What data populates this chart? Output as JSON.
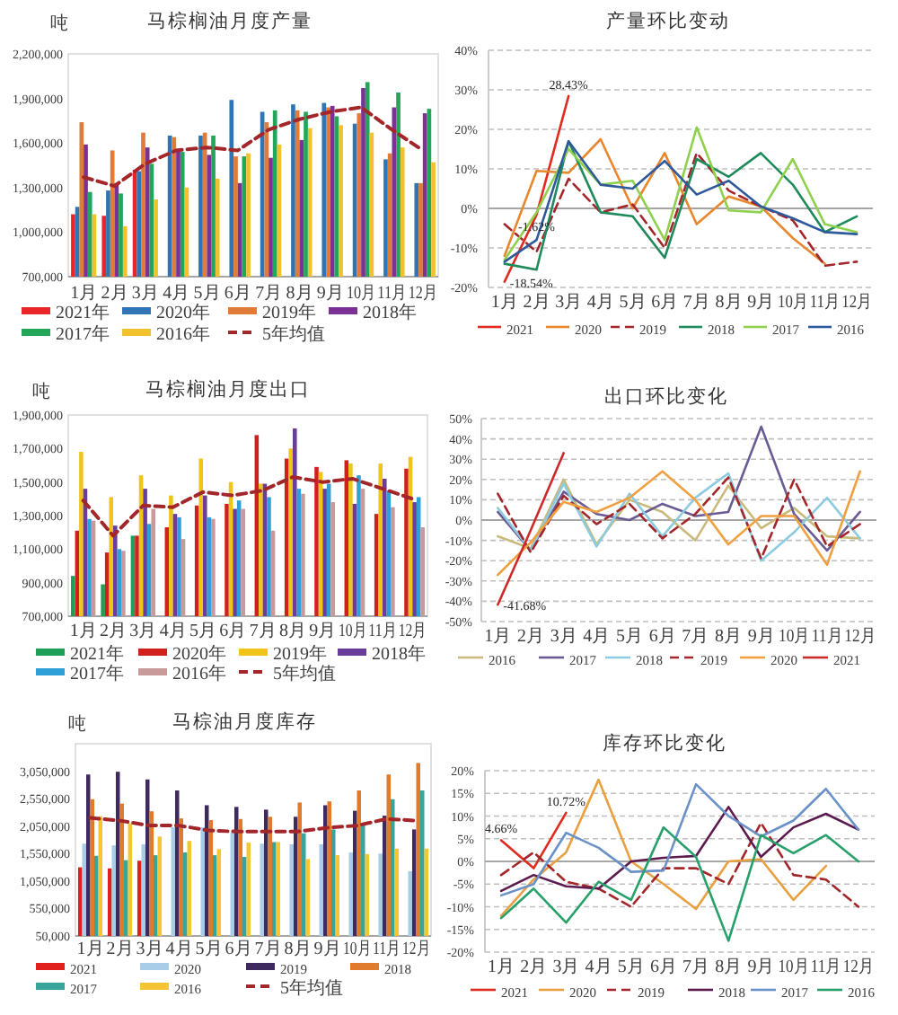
{
  "chart_data": [
    {
      "type": "bar",
      "title": "马棕榈油月度产量",
      "ylabel": "吨",
      "categories": [
        "1月",
        "2月",
        "3月",
        "4月",
        "5月",
        "6月",
        "7月",
        "8月",
        "9月",
        "10月",
        "11月",
        "12月"
      ],
      "series": [
        {
          "name": "2021年",
          "color": "#e8262a",
          "values": [
            1120000,
            1110000,
            1420000,
            null,
            null,
            null,
            null,
            null,
            null,
            null,
            null,
            null
          ]
        },
        {
          "name": "2020年",
          "color": "#2f75b5",
          "values": [
            1170000,
            1280000,
            1410000,
            1650000,
            1650000,
            1890000,
            1810000,
            1860000,
            1870000,
            1730000,
            1490000,
            1330000
          ]
        },
        {
          "name": "2019年",
          "color": "#e07b39",
          "values": [
            1740000,
            1550000,
            1670000,
            1640000,
            1670000,
            1510000,
            1740000,
            1820000,
            1840000,
            1800000,
            1530000,
            1330000
          ]
        },
        {
          "name": "2018年",
          "color": "#7b3294",
          "values": [
            1590000,
            1330000,
            1570000,
            1560000,
            1520000,
            1330000,
            1500000,
            1620000,
            1850000,
            1970000,
            1840000,
            1800000
          ]
        },
        {
          "name": "2017年",
          "color": "#23a55a",
          "values": [
            1270000,
            1260000,
            1460000,
            1540000,
            1650000,
            1510000,
            1820000,
            1810000,
            1780000,
            2010000,
            1940000,
            1830000
          ]
        },
        {
          "name": "2016年",
          "color": "#f2c12e",
          "values": [
            1120000,
            1040000,
            1220000,
            1300000,
            1360000,
            1530000,
            1590000,
            1700000,
            1720000,
            1670000,
            1570000,
            1470000
          ]
        },
        {
          "name": "5年均值",
          "type": "line",
          "line_style": "dashed",
          "color": "#a3262a",
          "values": [
            1370000,
            1310000,
            1460000,
            1550000,
            1570000,
            1550000,
            1690000,
            1760000,
            1810000,
            1840000,
            1690000,
            1550000
          ]
        }
      ],
      "ylim": [
        700000,
        2200000
      ],
      "yticks": [
        {
          "value": 700000,
          "label": "700,000"
        },
        {
          "value": 1000000,
          "label": "1,000,000"
        },
        {
          "value": 1300000,
          "label": "1,300,000"
        },
        {
          "value": 1600000,
          "label": "1,600,000"
        },
        {
          "value": 1900000,
          "label": "1,900,000"
        },
        {
          "value": 2200000,
          "label": "2,200,000"
        }
      ],
      "legend": "bottom"
    },
    {
      "type": "line",
      "title": "产量环比变动",
      "categories": [
        "1月",
        "2月",
        "3月",
        "4月",
        "5月",
        "6月",
        "7月",
        "8月",
        "9月",
        "10月",
        "11月",
        "12月"
      ],
      "series": [
        {
          "name": "2021",
          "color": "#e02b20",
          "values": [
            -18.54,
            -1.62,
            28.43,
            null,
            null,
            null,
            null,
            null,
            null,
            null,
            null,
            null
          ],
          "value_labels": [
            "-18.54%",
            "-1.62%",
            "28.43%",
            null,
            null,
            null,
            null,
            null,
            null,
            null,
            null,
            null
          ]
        },
        {
          "name": "2020",
          "color": "#e8872e",
          "values": [
            -12,
            9.5,
            9,
            17.5,
            0,
            14,
            -4,
            3,
            0.5,
            -7.5,
            -14,
            null
          ]
        },
        {
          "name": "2019",
          "color": "#a3262a",
          "line_style": "dashed",
          "values": [
            -4,
            -11,
            7.5,
            -1,
            1,
            -10,
            14,
            4.5,
            0.5,
            -3,
            -14.5,
            -13.5
          ]
        },
        {
          "name": "2018",
          "color": "#1f8a5b",
          "values": [
            -14,
            -15.5,
            17,
            -1,
            -2,
            -12.5,
            12.5,
            8,
            14,
            6,
            -6,
            -2
          ]
        },
        {
          "name": "2017",
          "color": "#8fd14f",
          "values": [
            -13,
            -1,
            15,
            6,
            7,
            -8,
            20.5,
            -0.5,
            -1,
            12.5,
            -4,
            -6
          ]
        },
        {
          "name": "2016",
          "color": "#2e5a9c",
          "values": [
            -13.5,
            -8,
            17,
            6,
            5,
            12,
            3.5,
            7,
            0.5,
            -2.5,
            -6,
            -6.5
          ]
        }
      ],
      "ylim": [
        -20,
        40
      ],
      "yticks": [
        {
          "value": -20,
          "label": "-20%"
        },
        {
          "value": -10,
          "label": "-10%"
        },
        {
          "value": 0,
          "label": "0%"
        },
        {
          "value": 10,
          "label": "10%"
        },
        {
          "value": 20,
          "label": "20%"
        },
        {
          "value": 30,
          "label": "30%"
        },
        {
          "value": 40,
          "label": "40%"
        }
      ],
      "grid": "y",
      "legend": "bottom"
    },
    {
      "type": "bar",
      "title": "马棕榈油月度出口",
      "ylabel": "吨",
      "categories": [
        "1月",
        "2月",
        "3月",
        "4月",
        "5月",
        "6月",
        "7月",
        "8月",
        "9月",
        "10月",
        "11月",
        "12月"
      ],
      "series": [
        {
          "name": "2021年",
          "color": "#1e9e57",
          "values": [
            940000,
            890000,
            1180000,
            null,
            null,
            null,
            null,
            null,
            null,
            null,
            null,
            null
          ]
        },
        {
          "name": "2020年",
          "color": "#d0201c",
          "values": [
            1210000,
            1080000,
            1180000,
            1230000,
            1360000,
            1370000,
            1780000,
            1640000,
            1590000,
            1630000,
            1310000,
            1580000
          ]
        },
        {
          "name": "2019年",
          "color": "#f0c419",
          "values": [
            1680000,
            1410000,
            1540000,
            1420000,
            1640000,
            1500000,
            1490000,
            1700000,
            1560000,
            1610000,
            1610000,
            1650000
          ]
        },
        {
          "name": "2018年",
          "color": "#6a3d9a",
          "values": [
            1460000,
            1240000,
            1460000,
            1310000,
            1420000,
            1340000,
            1490000,
            1820000,
            1460000,
            1370000,
            1520000,
            1380000
          ]
        },
        {
          "name": "2017年",
          "color": "#2f9fd8",
          "values": [
            1280000,
            1100000,
            1250000,
            1290000,
            1290000,
            1390000,
            1410000,
            1460000,
            1490000,
            1540000,
            1450000,
            1410000
          ]
        },
        {
          "name": "2016年",
          "color": "#c99a9a",
          "values": [
            1270000,
            1090000,
            1340000,
            1160000,
            1280000,
            1340000,
            1210000,
            1430000,
            1380000,
            1460000,
            1350000,
            1230000
          ]
        },
        {
          "name": "5年均值",
          "type": "line",
          "line_style": "dashed",
          "color": "#a3262a",
          "values": [
            1390000,
            1180000,
            1360000,
            1350000,
            1440000,
            1420000,
            1450000,
            1530000,
            1500000,
            1520000,
            1460000,
            1400000
          ]
        }
      ],
      "ylim": [
        700000,
        1900000
      ],
      "yticks": [
        {
          "value": 700000,
          "label": "700,000"
        },
        {
          "value": 900000,
          "label": "900,000"
        },
        {
          "value": 1100000,
          "label": "1,100,000"
        },
        {
          "value": 1300000,
          "label": "1,300,000"
        },
        {
          "value": 1500000,
          "label": "1,500,000"
        },
        {
          "value": 1700000,
          "label": "1,700,000"
        },
        {
          "value": 1900000,
          "label": "1,900,000"
        }
      ],
      "legend": "bottom"
    },
    {
      "type": "line",
      "title": "出口环比变化",
      "categories": [
        "1月",
        "2月",
        "3月",
        "4月",
        "5月",
        "6月",
        "7月",
        "8月",
        "9月",
        "10月",
        "11月",
        "12月"
      ],
      "series": [
        {
          "name": "2016",
          "color": "#c9b97a",
          "values": [
            -8,
            -14,
            20,
            -12,
            10,
            4,
            -10,
            17,
            -4,
            6,
            -8,
            -9
          ]
        },
        {
          "name": "2017",
          "color": "#6b5b95",
          "values": [
            4,
            -15,
            14,
            3,
            0,
            8,
            2,
            4,
            46,
            3,
            -15,
            4
          ]
        },
        {
          "name": "2018",
          "color": "#8ccbe0",
          "values": [
            6,
            -15,
            18,
            -13,
            13,
            -8,
            11,
            23,
            -20,
            -6,
            11,
            -9
          ]
        },
        {
          "name": "2019",
          "color": "#a3262a",
          "line_style": "dashed",
          "values": [
            13,
            -16,
            12,
            -2,
            8,
            -9,
            3,
            21,
            -19,
            20,
            -13,
            -2
          ]
        },
        {
          "name": "2020",
          "color": "#f0a040",
          "values": [
            -27,
            -11,
            9,
            4,
            11,
            24,
            10,
            -12,
            2,
            2,
            -22,
            24
          ]
        },
        {
          "name": "2021",
          "color": "#cc2a2a",
          "values": [
            -41.68,
            -5,
            33,
            null,
            null,
            null,
            null,
            null,
            null,
            null,
            null,
            null
          ],
          "value_labels": [
            "-41.68%",
            null,
            null,
            null,
            null,
            null,
            null,
            null,
            null,
            null,
            null,
            null
          ]
        }
      ],
      "ylim": [
        -50,
        50
      ],
      "yticks": [
        {
          "value": -50,
          "label": "-50%"
        },
        {
          "value": -40,
          "label": "-40%"
        },
        {
          "value": -30,
          "label": "-30%"
        },
        {
          "value": -20,
          "label": "-20%"
        },
        {
          "value": -10,
          "label": "-10%"
        },
        {
          "value": 0,
          "label": "0%"
        },
        {
          "value": 10,
          "label": "10%"
        },
        {
          "value": 20,
          "label": "20%"
        },
        {
          "value": 30,
          "label": "30%"
        },
        {
          "value": 40,
          "label": "40%"
        },
        {
          "value": 50,
          "label": "50%"
        }
      ],
      "grid": "y",
      "legend": "bottom"
    },
    {
      "type": "bar",
      "title": "马棕油月度库存",
      "ylabel": "吨",
      "categories": [
        "1月",
        "2月",
        "3月",
        "4月",
        "5月",
        "6月",
        "7月",
        "8月",
        "9月",
        "10月",
        "11月",
        "12月"
      ],
      "series": [
        {
          "name": "2021",
          "color": "#e0201c",
          "values": [
            1300000,
            1280000,
            1420000,
            null,
            null,
            null,
            null,
            null,
            null,
            null,
            null,
            null
          ]
        },
        {
          "name": "2020",
          "color": "#a8cde8",
          "values": [
            1730000,
            1700000,
            1720000,
            2030000,
            2030000,
            1930000,
            1730000,
            1720000,
            1720000,
            1570000,
            1550000,
            1230000
          ]
        },
        {
          "name": "2019",
          "color": "#3e2a5e",
          "values": [
            2990000,
            3040000,
            2900000,
            2700000,
            2430000,
            2400000,
            2350000,
            2220000,
            2430000,
            2330000,
            2240000,
            1990000
          ]
        },
        {
          "name": "2018",
          "color": "#e07b2e",
          "values": [
            2540000,
            2460000,
            2320000,
            2190000,
            2160000,
            2180000,
            2220000,
            2480000,
            2500000,
            2700000,
            2990000,
            3200000
          ]
        },
        {
          "name": "2017",
          "color": "#3aa39a",
          "values": [
            1510000,
            1430000,
            1520000,
            1570000,
            1520000,
            1490000,
            1760000,
            1920000,
            1990000,
            2100000,
            2540000,
            2700000
          ]
        },
        {
          "name": "2016",
          "color": "#f5c533",
          "values": [
            2230000,
            2100000,
            1860000,
            1780000,
            1630000,
            1750000,
            1760000,
            1450000,
            1520000,
            1540000,
            1640000,
            1640000
          ]
        },
        {
          "name": "5年均值",
          "type": "line",
          "line_style": "dashed",
          "color": "#a3262a",
          "values": [
            2200000,
            2150000,
            2060000,
            2060000,
            1970000,
            1950000,
            1950000,
            1950000,
            2020000,
            2060000,
            2180000,
            2150000
          ]
        }
      ],
      "ylim": [
        50000,
        3550000
      ],
      "yticks": [
        {
          "value": 50000,
          "label": "50,000"
        },
        {
          "value": 550000,
          "label": "550,000"
        },
        {
          "value": 1050000,
          "label": "1,050,000"
        },
        {
          "value": 1550000,
          "label": "1,550,000"
        },
        {
          "value": 2050000,
          "label": "2,050,000"
        },
        {
          "value": 2550000,
          "label": "2,550,000"
        },
        {
          "value": 3050000,
          "label": "3,050,000"
        }
      ],
      "legend": "bottom"
    },
    {
      "type": "line",
      "title": "库存环比变化",
      "categories": [
        "1月",
        "2月",
        "3月",
        "4月",
        "5月",
        "6月",
        "7月",
        "8月",
        "9月",
        "10月",
        "11月",
        "12月"
      ],
      "series": [
        {
          "name": "2021",
          "color": "#e02b20",
          "values": [
            4.66,
            -1.5,
            10.72,
            null,
            null,
            null,
            null,
            null,
            null,
            null,
            null,
            null
          ],
          "value_labels": [
            "4.66%",
            null,
            "10.72%",
            null,
            null,
            null,
            null,
            null,
            null,
            null,
            null,
            null
          ]
        },
        {
          "name": "2020",
          "color": "#e8a040",
          "values": [
            -12,
            -4,
            2,
            18,
            0,
            -5,
            -10.5,
            0,
            0.5,
            -8.5,
            -1,
            null
          ]
        },
        {
          "name": "2019",
          "color": "#a3262a",
          "line_style": "dashed",
          "values": [
            -3,
            2,
            -4.5,
            -6,
            -10,
            -1.5,
            -1.5,
            -5,
            8.5,
            -3,
            -4,
            -10
          ]
        },
        {
          "name": "2018",
          "color": "#5c1a4e",
          "values": [
            -6.5,
            -3,
            -5.5,
            -6,
            0,
            0.8,
            1.2,
            12,
            1,
            7.5,
            10.5,
            7
          ]
        },
        {
          "name": "2017",
          "color": "#6b92c8",
          "values": [
            -7.5,
            -5,
            6.3,
            3,
            -2.3,
            -2,
            17,
            10,
            5.5,
            9,
            16,
            7
          ]
        },
        {
          "name": "2016",
          "color": "#27a06a",
          "values": [
            -12.5,
            -6,
            -13.5,
            -4.5,
            -8.5,
            7.5,
            1,
            -17.5,
            5.8,
            1.8,
            5.8,
            0
          ]
        }
      ],
      "ylim": [
        -20,
        20
      ],
      "yticks": [
        {
          "value": -20,
          "label": "-20%"
        },
        {
          "value": -15,
          "label": "-15%"
        },
        {
          "value": -10,
          "label": "-10%"
        },
        {
          "value": -5,
          "label": "-5%"
        },
        {
          "value": 0,
          "label": "0%"
        },
        {
          "value": 5,
          "label": "5%"
        },
        {
          "value": 10,
          "label": "10%"
        },
        {
          "value": 15,
          "label": "15%"
        },
        {
          "value": 20,
          "label": "20%"
        }
      ],
      "grid": "y",
      "legend": "bottom"
    }
  ]
}
